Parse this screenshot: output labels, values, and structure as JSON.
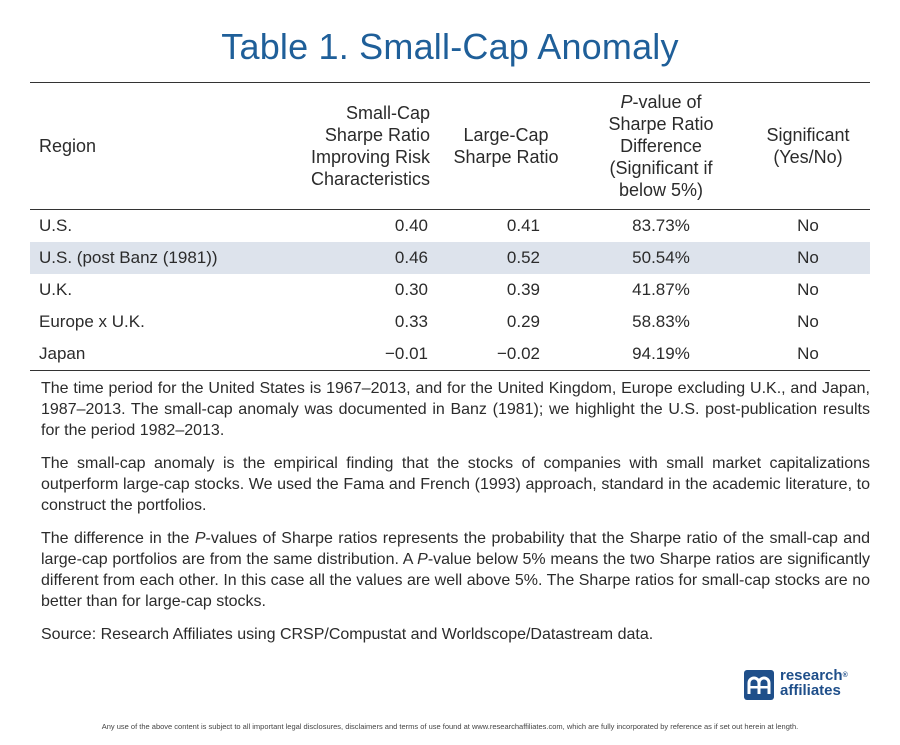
{
  "title": "Table 1. Small-Cap Anomaly",
  "table": {
    "headers": {
      "region": "Region",
      "small_cap": [
        "Small-Cap",
        "Sharpe Ratio",
        "Improving Risk",
        "Characteristics"
      ],
      "large_cap": [
        "Large-Cap",
        "Sharpe Ratio"
      ],
      "p_value": [
        "-value of",
        "Sharpe Ratio",
        "Difference",
        "(Significant if",
        "below 5%)"
      ],
      "p_value_italic": "P",
      "significant": [
        "Significant",
        "(Yes/No)"
      ]
    },
    "rows": [
      {
        "region": "U.S.",
        "small_cap": "0.40",
        "large_cap": "0.41",
        "p_value": "83.73%",
        "significant": "No"
      },
      {
        "region": "U.S. (post Banz (1981))",
        "small_cap": "0.46",
        "large_cap": "0.52",
        "p_value": "50.54%",
        "significant": "No"
      },
      {
        "region": "U.K.",
        "small_cap": "0.30",
        "large_cap": "0.39",
        "p_value": "41.87%",
        "significant": "No"
      },
      {
        "region": "Europe x U.K.",
        "small_cap": "0.33",
        "large_cap": "0.29",
        "p_value": "58.83%",
        "significant": "No"
      },
      {
        "region": "Japan",
        "small_cap": "−0.01",
        "large_cap": "−0.02",
        "p_value": "94.19%",
        "significant": "No"
      }
    ]
  },
  "notes": {
    "note1": "The time period for the United States is 1967–2013, and for the United Kingdom, Europe excluding U.K., and Japan, 1987–2013. The small-cap anomaly was documented in Banz (1981); we highlight the U.S. post-publication results for the period 1982–2013.",
    "note2": "The small-cap anomaly is the empirical finding that the stocks of companies with small market capitalizations outperform large-cap stocks. We used the Fama and French (1993) approach, standard in the academic literature, to construct the portfolios.",
    "note3": {
      "a": "The difference in the ",
      "p1": "P",
      "b": "-values of Sharpe ratios represents the probability that the Sharpe ratio of the small-cap and large-cap portfolios are from the same distribution. A ",
      "p2": "P",
      "c": "-value below 5% means the two Sharpe ratios are significantly different from each other. In this case all the values are well above 5%. The Sharpe ratios for small-cap stocks are no better than for large-cap stocks."
    },
    "source": "Source: Research Affiliates using CRSP/Compustat and Worldscope/Datastream data."
  },
  "logo": {
    "line1": "research",
    "line2": "affiliates",
    "tm": "®",
    "icon": "research-affiliates-logo-mark",
    "color": "#1f4f8a"
  },
  "disclaimer": "Any use of the above content is subject to all important legal disclosures, disclaimers and terms of use found at www.researchaffiliates.com, which are fully incorporated by reference as if set out herein at length.",
  "colors": {
    "title": "#1f5f99",
    "row_highlight": "#dde3ec"
  }
}
